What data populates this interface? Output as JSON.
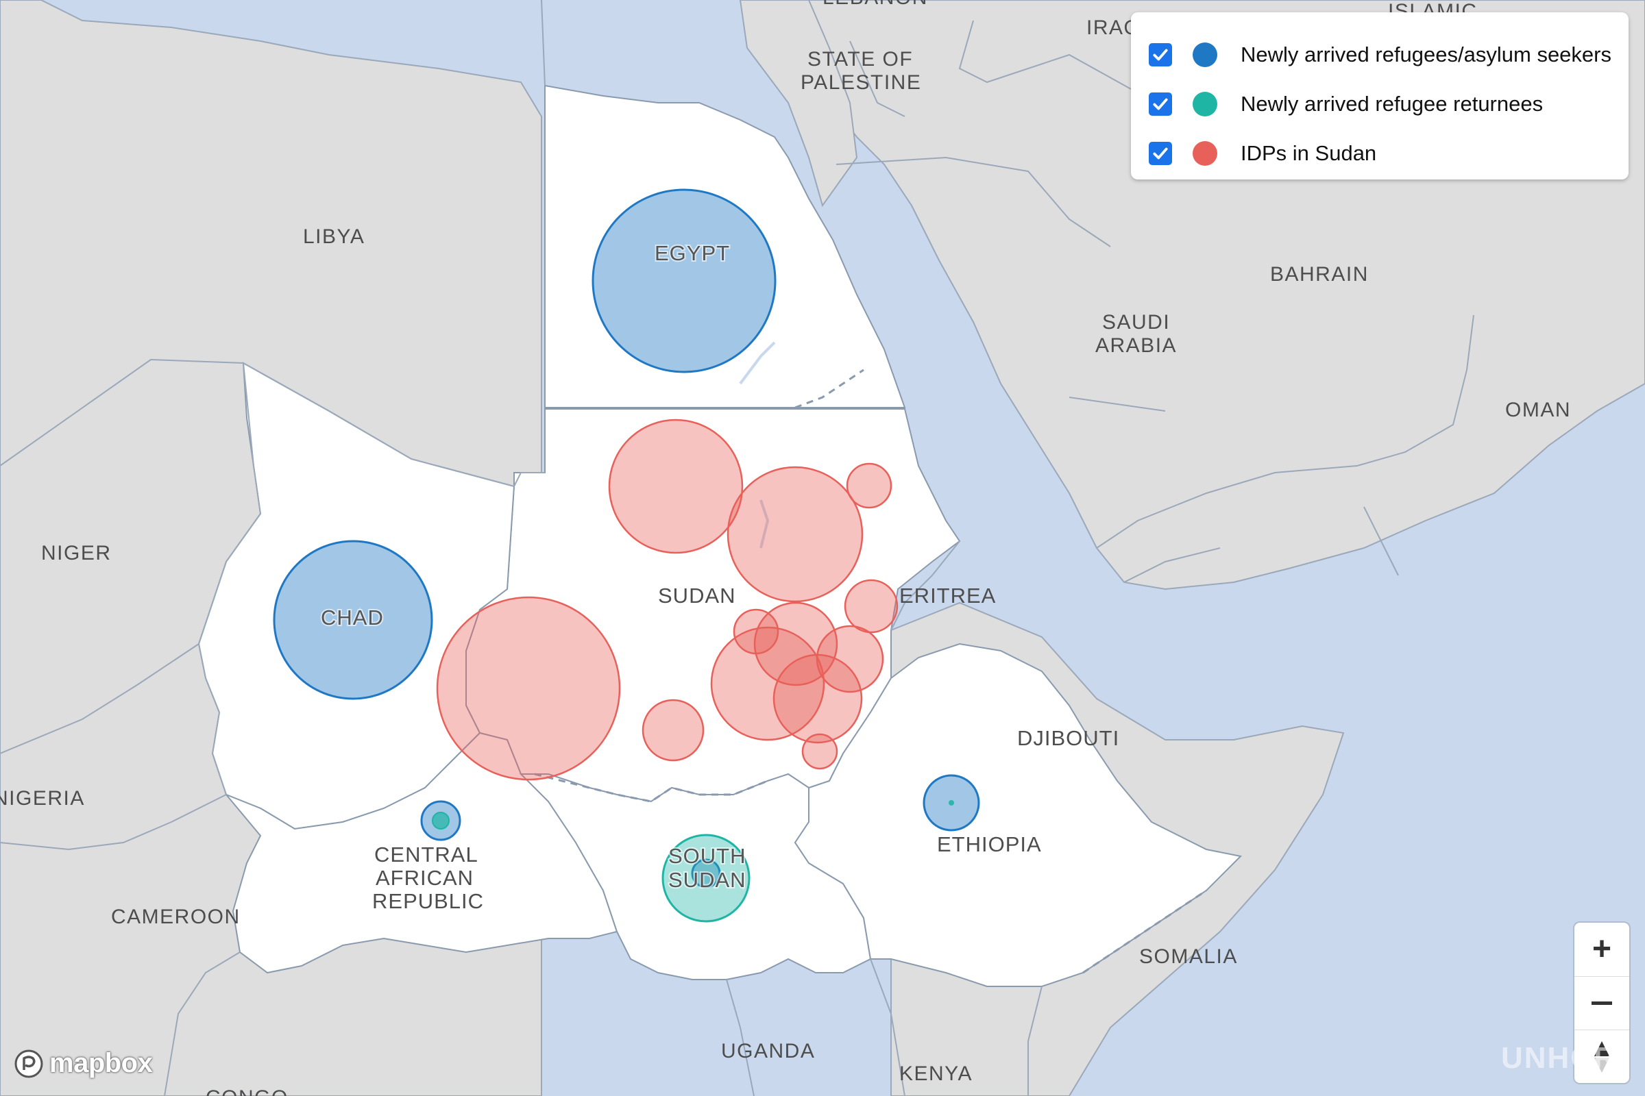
{
  "map": {
    "labels": {
      "lebanon": "LEBANON",
      "iraq": "IRAQ",
      "iran": "ISLAMIC",
      "palestine_1": "STATE OF",
      "palestine_2": "PALESTINE",
      "libya": "LIBYA",
      "egypt": "EGYPT",
      "bahrain": "BAHRAIN",
      "saudi_1": "SAUDI",
      "saudi_2": "ARABIA",
      "oman": "OMAN",
      "niger": "NIGER",
      "chad": "CHAD",
      "sudan": "SUDAN",
      "eritrea": "ERITREA",
      "djibouti": "DJIBOUTI",
      "nigeria": "NIGERIA",
      "car_1": "CENTRAL",
      "car_2": "AFRICAN",
      "car_3": "REPUBLIC",
      "south_sudan_1": "SOUTH",
      "south_sudan_2": "SUDAN",
      "ethiopia": "ETHIOPIA",
      "cameroon": "CAMEROON",
      "somalia": "SOMALIA",
      "uganda": "UGANDA",
      "kenya": "KENYA",
      "drc": "CONGO"
    },
    "colors": {
      "water": "#c9d8ec",
      "land": "#dedede",
      "highlight": "#ffffff",
      "refugees": "#1f78c4",
      "returnees": "#1fb5a5",
      "idps": "#e8605a"
    }
  },
  "legend": {
    "items": [
      {
        "label": "Newly arrived refugees/asylum seekers",
        "color": "#1f78c4",
        "checked": true
      },
      {
        "label": "Newly arrived refugee returnees",
        "color": "#1fb5a5",
        "checked": true
      },
      {
        "label": "IDPs in Sudan",
        "color": "#e8605a",
        "checked": true
      }
    ]
  },
  "attribution": {
    "logo_text": "mapbox",
    "watermark": "UNHCR"
  },
  "icons": {
    "zoom_in": "plus-icon",
    "zoom_out": "minus-icon",
    "compass": "compass-icon",
    "mapbox": "mapbox-logo-icon",
    "check": "check-icon"
  }
}
